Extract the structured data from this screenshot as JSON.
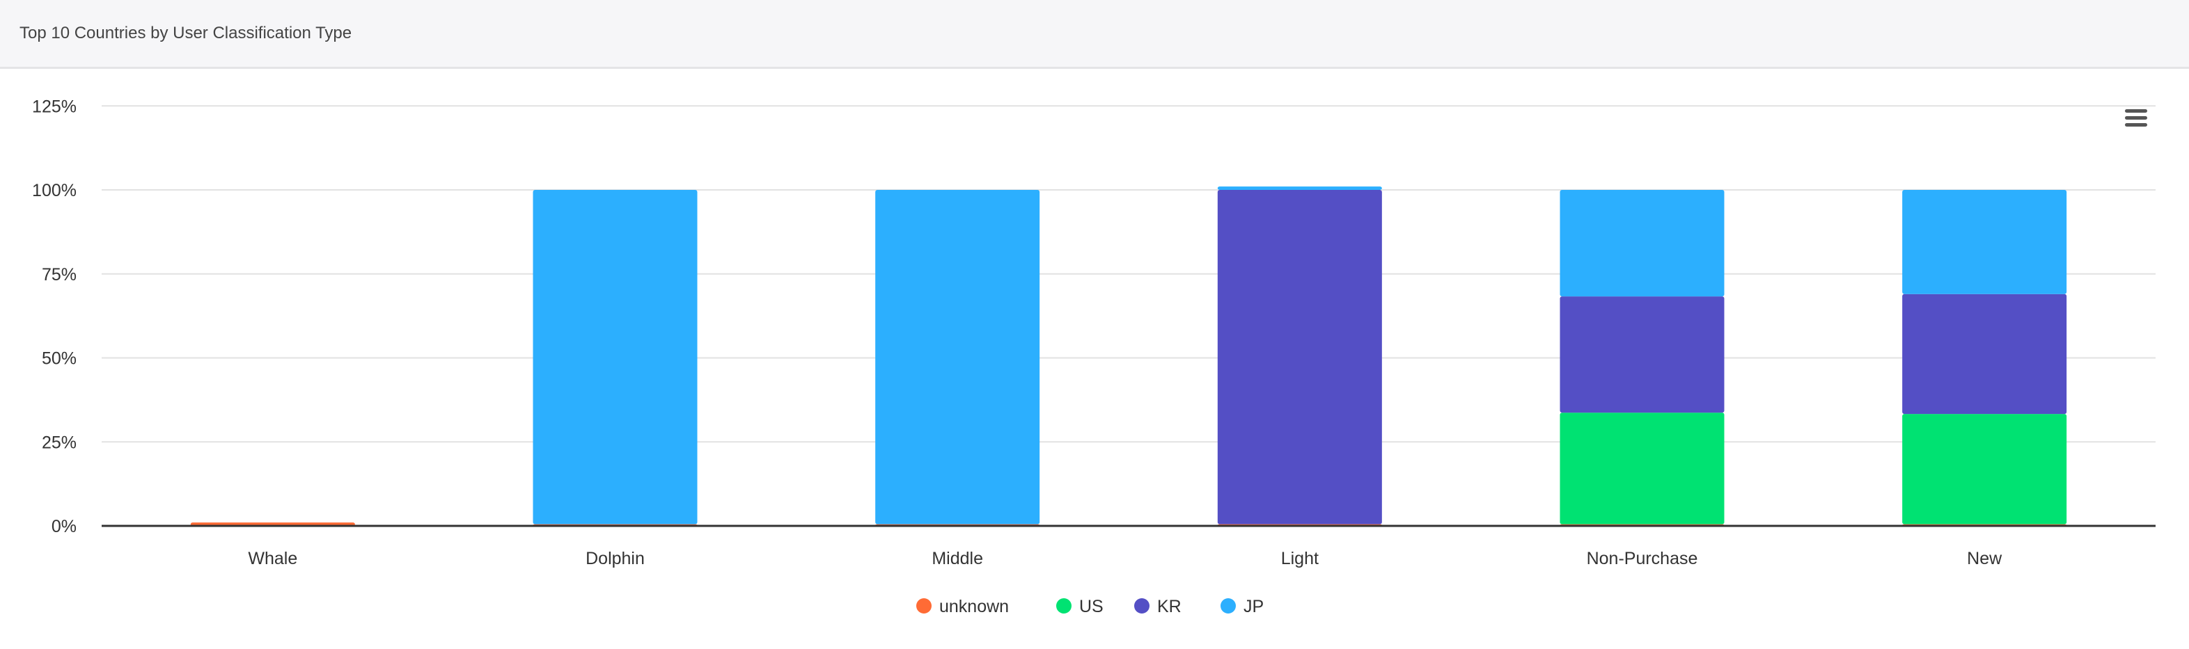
{
  "header": {
    "title": "Top 10 Countries by User Classification Type"
  },
  "menu": {
    "icon": "hamburger-menu-icon"
  },
  "chart_data": {
    "type": "bar",
    "stacked": true,
    "title": "Top 10 Countries by User Classification Type",
    "xlabel": "",
    "ylabel": "",
    "ylim": [
      0,
      125
    ],
    "yticks": [
      "0%",
      "25%",
      "50%",
      "75%",
      "100%",
      "125%"
    ],
    "ytick_values": [
      0,
      25,
      50,
      75,
      100,
      125
    ],
    "grid": true,
    "legend": "bottom-center",
    "categories": [
      "Whale",
      "Dolphin",
      "Middle",
      "Light",
      "Non-Purchase",
      "New"
    ],
    "series": [
      {
        "name": "unknown",
        "color": "#ff6b35",
        "values": [
          1,
          0.5,
          0.5,
          0.5,
          0.5,
          0.5
        ]
      },
      {
        "name": "US",
        "color": "#00e272",
        "values": [
          0,
          0,
          0,
          0,
          33.2,
          32.8
        ]
      },
      {
        "name": "KR",
        "color": "#544fc5",
        "values": [
          0,
          0,
          0,
          99.5,
          34.6,
          35.7
        ]
      },
      {
        "name": "JP",
        "color": "#2caffe",
        "values": [
          0,
          99.5,
          99.5,
          1,
          31.7,
          31
        ]
      }
    ]
  }
}
